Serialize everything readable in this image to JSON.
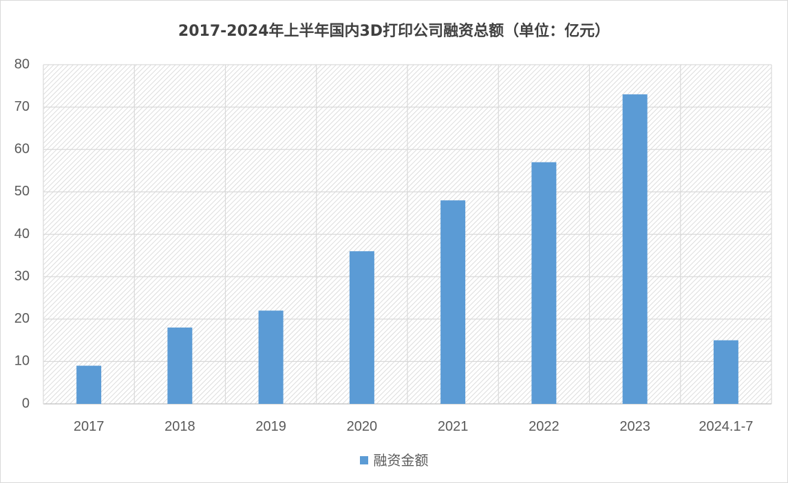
{
  "chart_data": {
    "type": "bar",
    "title": "2017-2024年上半年国内3D打印公司融资总额（单位：亿元）",
    "categories": [
      "2017",
      "2018",
      "2019",
      "2020",
      "2021",
      "2022",
      "2023",
      "2024.1-7"
    ],
    "series": [
      {
        "name": "融资金额",
        "values": [
          9,
          18,
          22,
          36,
          48,
          57,
          73,
          15
        ],
        "color": "#5b9bd5"
      }
    ],
    "ylim": [
      0,
      80
    ],
    "yticks": [
      0,
      10,
      20,
      30,
      40,
      50,
      60,
      70,
      80
    ],
    "xlabel": "",
    "ylabel": "",
    "grid": true,
    "legend_position": "bottom"
  }
}
